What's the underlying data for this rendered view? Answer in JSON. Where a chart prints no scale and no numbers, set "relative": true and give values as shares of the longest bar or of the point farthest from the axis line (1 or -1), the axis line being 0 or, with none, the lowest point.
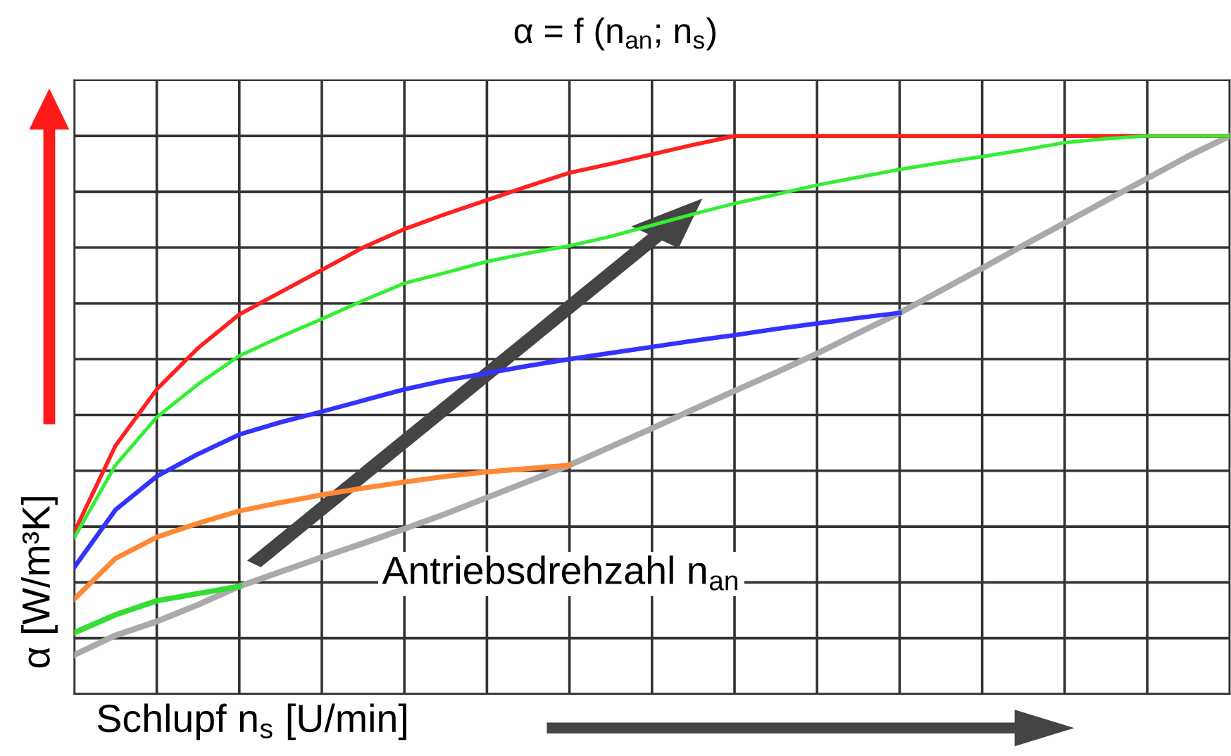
{
  "chart_data": {
    "type": "line",
    "title": "α = f (n$_{an}$; n$_{s}$)",
    "xlabel": "Schlupf n$_{s}$ [U/min]",
    "ylabel": "α [W/m³K]",
    "annotations": [
      "Antriebsdrehzahl n$_{an}$"
    ],
    "relative": true,
    "grid": true,
    "legend": false,
    "marker": "none",
    "line_style": "solid",
    "categories": [
      null,
      null,
      null,
      null,
      null,
      null,
      null,
      null,
      null,
      null,
      null,
      null,
      null,
      null,
      null,
      null,
      null,
      null,
      null,
      null,
      null,
      null,
      null,
      null,
      null,
      null,
      null,
      null,
      null
    ],
    "series": [
      {
        "color": "#aaaaaa",
        "values": [
          0.07,
          0.105,
          0.13,
          0.16,
          0.193,
          0.219,
          0.245,
          0.27,
          0.296,
          0.323,
          0.352,
          0.381,
          0.41,
          0.443,
          0.476,
          0.51,
          0.543,
          0.576,
          0.61,
          0.647,
          0.683,
          0.723,
          0.763,
          0.804,
          0.844,
          0.884,
          0.924,
          0.964,
          1.0
        ]
      },
      {
        "color": "#33dd33",
        "values": [
          0.11,
          0.142,
          0.167,
          0.18,
          0.193,
          null,
          null,
          null,
          null,
          null,
          null,
          null,
          null,
          null,
          null,
          null,
          null,
          null,
          null,
          null,
          null,
          null,
          null,
          null,
          null,
          null,
          null,
          null,
          null
        ]
      },
      {
        "color": "#ff8833",
        "values": [
          0.17,
          0.243,
          0.281,
          0.306,
          0.328,
          0.343,
          0.357,
          0.369,
          0.38,
          0.39,
          0.398,
          0.404,
          0.41,
          null,
          null,
          null,
          null,
          null,
          null,
          null,
          null,
          null,
          null,
          null,
          null,
          null,
          null,
          null,
          null
        ]
      },
      {
        "color": "#3333ff",
        "values": [
          0.227,
          0.33,
          0.39,
          0.43,
          0.465,
          0.487,
          0.506,
          0.526,
          0.546,
          0.562,
          0.575,
          0.588,
          0.6,
          0.611,
          0.622,
          0.633,
          0.643,
          0.654,
          0.664,
          0.674,
          0.683,
          null,
          null,
          null,
          null,
          null,
          null,
          null,
          null
        ]
      },
      {
        "color": "#ff2020",
        "values": [
          0.29,
          0.445,
          0.546,
          0.62,
          0.68,
          0.72,
          0.76,
          0.8,
          0.833,
          0.86,
          0.885,
          0.91,
          0.934,
          0.95,
          0.967,
          0.984,
          1.0,
          1.0,
          1.0,
          1.0,
          1.0,
          1.0,
          1.0,
          1.0,
          1.0,
          1.0,
          1.0,
          1.0,
          1.0
        ]
      },
      {
        "color": "#33ee33",
        "values": [
          0.28,
          0.41,
          0.496,
          0.555,
          0.606,
          0.64,
          0.672,
          0.705,
          0.736,
          0.755,
          0.775,
          0.79,
          0.803,
          0.82,
          0.84,
          0.86,
          0.879,
          0.895,
          0.912,
          0.926,
          0.94,
          0.952,
          0.963,
          0.975,
          0.988,
          0.995,
          1.0,
          1.0,
          1.0
        ]
      }
    ]
  }
}
